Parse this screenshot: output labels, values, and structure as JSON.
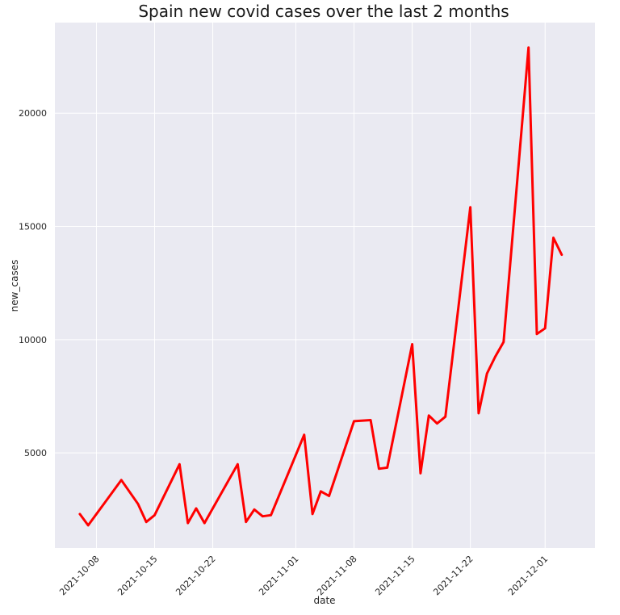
{
  "chart_data": {
    "type": "line",
    "title": "Spain new covid cases over the last 2 months",
    "xlabel": "date",
    "ylabel": "new_cases",
    "x_tick_labels": [
      "2021-10-08",
      "2021-10-15",
      "2021-10-22",
      "2021-11-01",
      "2021-11-08",
      "2021-11-15",
      "2021-11-22",
      "2021-12-01"
    ],
    "y_tick_values": [
      5000,
      10000,
      15000,
      20000
    ],
    "y_tick_labels": [
      "5000",
      "10000",
      "15000",
      "20000"
    ],
    "xlim": [
      "2021-10-03",
      "2021-12-07"
    ],
    "ylim": [
      800,
      24000
    ],
    "grid": true,
    "line_color": "#ff0000",
    "plot_background": "#eaeaf2",
    "grid_color": "#ffffff",
    "series": [
      {
        "x": [
          "2021-10-06",
          "2021-10-07",
          "2021-10-11",
          "2021-10-13",
          "2021-10-14",
          "2021-10-15",
          "2021-10-18",
          "2021-10-19",
          "2021-10-20",
          "2021-10-21",
          "2021-10-25",
          "2021-10-26",
          "2021-10-27",
          "2021-10-28",
          "2021-10-29",
          "2021-11-02",
          "2021-11-03",
          "2021-11-04",
          "2021-11-05",
          "2021-11-08",
          "2021-11-10",
          "2021-11-11",
          "2021-11-12",
          "2021-11-15",
          "2021-11-16",
          "2021-11-17",
          "2021-11-18",
          "2021-11-19",
          "2021-11-22",
          "2021-11-23",
          "2021-11-24",
          "2021-11-25",
          "2021-11-26",
          "2021-11-29",
          "2021-11-30",
          "2021-12-01",
          "2021-12-02",
          "2021-12-03"
        ],
        "y": [
          2300,
          1800,
          3800,
          2750,
          1950,
          2250,
          4500,
          1900,
          2550,
          1900,
          4500,
          1950,
          2500,
          2200,
          2250,
          5800,
          2300,
          3300,
          3100,
          6400,
          6450,
          4300,
          4350,
          9800,
          4100,
          6650,
          6300,
          6600,
          15850,
          6750,
          8500,
          9250,
          9900,
          22900,
          10250,
          10500,
          14500,
          13750
        ]
      }
    ]
  }
}
